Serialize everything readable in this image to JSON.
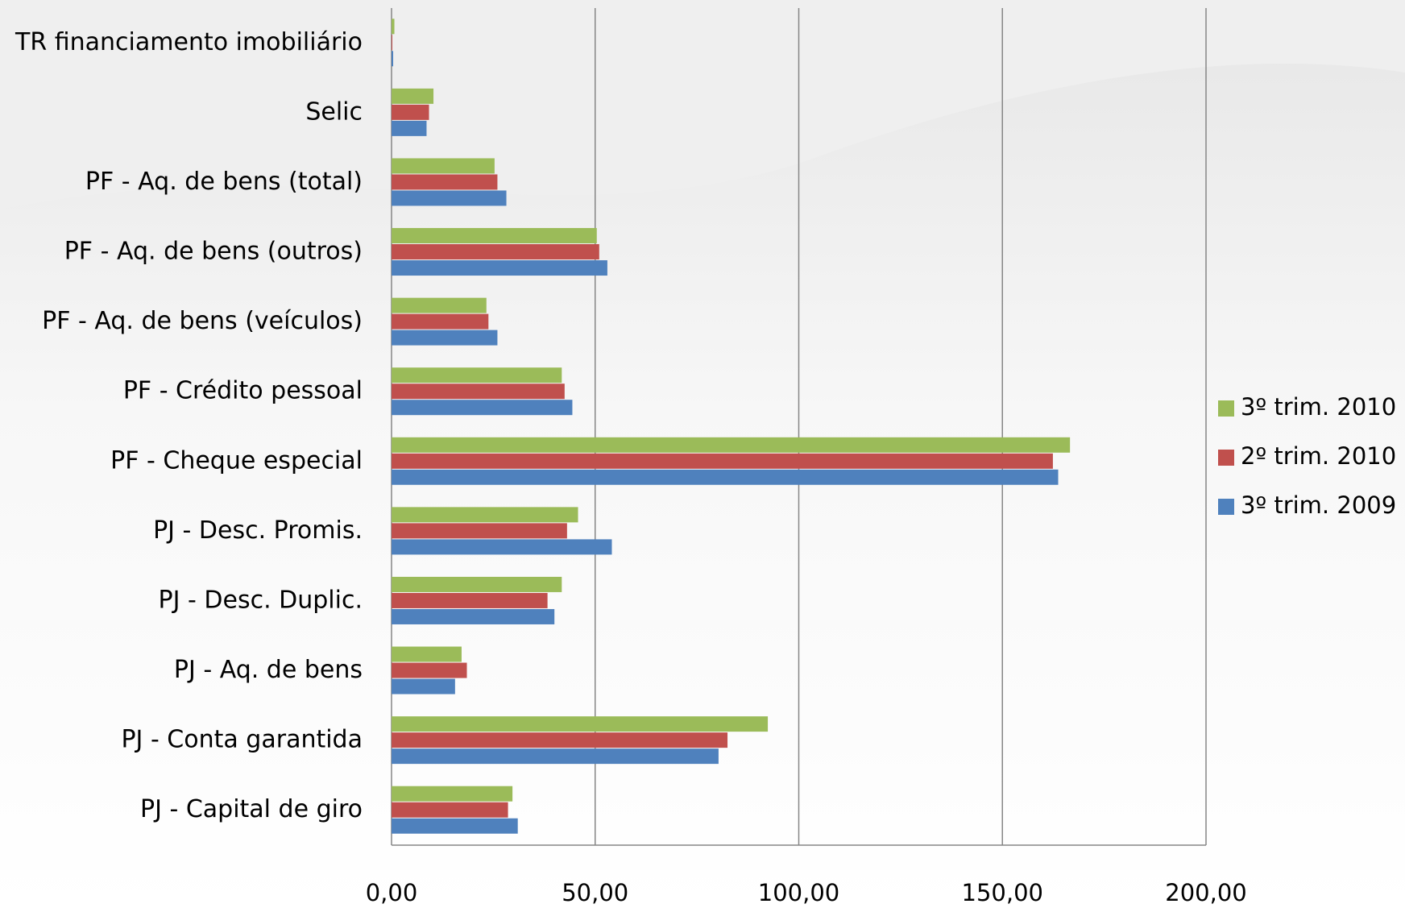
{
  "chart_data": {
    "type": "hbar",
    "categories": [
      "TR financiamento imobiliário",
      "Selic",
      "PF - Aq. de bens (total)",
      "PF - Aq. de bens (outros)",
      "PF - Aq. de bens (veículos)",
      "PF - Crédito pessoal",
      "PF - Cheque especial",
      "PJ - Desc. Promis.",
      "PJ - Desc. Duplic.",
      "PJ - Aq. de bens",
      "PJ - Conta garantida",
      "PJ - Capital de giro"
    ],
    "series": [
      {
        "name": "3º trim. 2010",
        "color": "#9bbb59",
        "values": [
          0.7,
          10.3,
          25.3,
          50.4,
          23.3,
          41.8,
          166.6,
          45.8,
          41.8,
          17.2,
          92.4,
          29.7
        ]
      },
      {
        "name": "2º trim. 2010",
        "color": "#c0504d",
        "values": [
          0.2,
          9.2,
          26.0,
          51.0,
          23.8,
          42.5,
          162.4,
          43.1,
          38.3,
          18.5,
          82.5,
          28.6
        ]
      },
      {
        "name": "3º trim. 2009",
        "color": "#4f81bd",
        "values": [
          0.4,
          8.6,
          28.2,
          53.0,
          26.0,
          44.4,
          163.7,
          54.1,
          40.0,
          15.6,
          80.3,
          31.0
        ]
      }
    ],
    "xlim": [
      0,
      200
    ],
    "xticks": [
      {
        "value": 0,
        "label": "0,00"
      },
      {
        "value": 50,
        "label": "50,00"
      },
      {
        "value": 100,
        "label": "100,00"
      },
      {
        "value": 150,
        "label": "150,00"
      },
      {
        "value": 200,
        "label": "200,00"
      }
    ],
    "grid": true,
    "legend": "right"
  }
}
